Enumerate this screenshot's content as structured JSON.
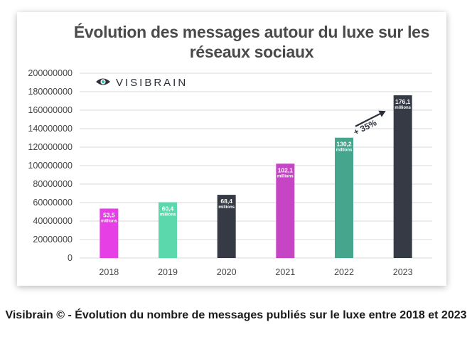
{
  "chart_data": {
    "type": "bar",
    "title": "Évolution des messages autour du luxe sur les réseaux sociaux",
    "categories": [
      "2018",
      "2019",
      "2020",
      "2021",
      "2022",
      "2023"
    ],
    "values": [
      53500000,
      60400000,
      68400000,
      102100000,
      130200000,
      176100000
    ],
    "data_labels": [
      {
        "value": "53,5",
        "unit": "millions"
      },
      {
        "value": "60,4",
        "unit": "millions"
      },
      {
        "value": "68,4",
        "unit": "millions"
      },
      {
        "value": "102,1",
        "unit": "millions"
      },
      {
        "value": "130,2",
        "unit": "millions"
      },
      {
        "value": "176,1",
        "unit": "millions"
      }
    ],
    "bar_colors": [
      "#e63fe6",
      "#5cd8ad",
      "#363a45",
      "#c545c5",
      "#45a58d",
      "#363a45"
    ],
    "yticks": [
      "200000000",
      "180000000",
      "160000000",
      "140000000",
      "120000000",
      "100000000",
      "80000000",
      "60000000",
      "40000000",
      "20000000",
      "0"
    ],
    "ylim": [
      0,
      200000000
    ],
    "xlabel": "",
    "ylabel": "",
    "grid": true,
    "annotation": "+ 35%"
  },
  "logo": {
    "text": "VISIBRAIN",
    "icon": "eye-icon"
  },
  "caption": "Visibrain © - Évolution du nombre de messages publiés sur le luxe entre 2018 et 2023"
}
